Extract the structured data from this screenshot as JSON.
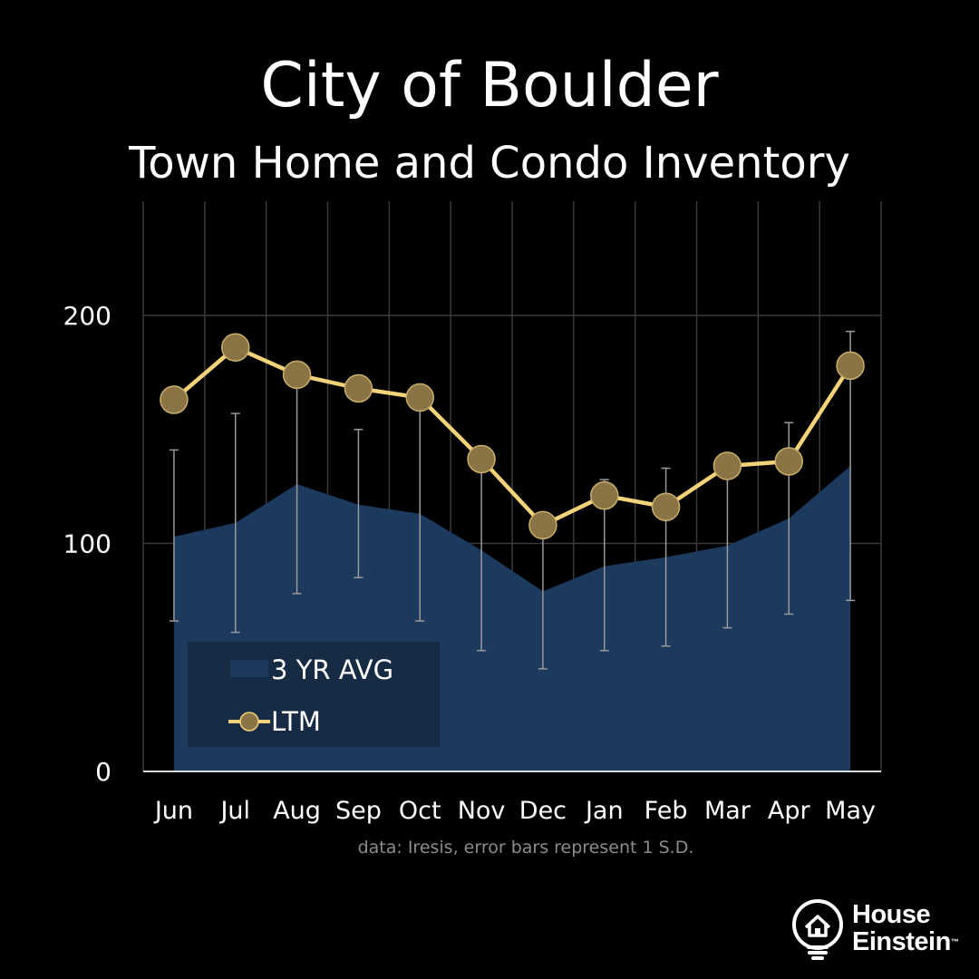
{
  "chart_data": {
    "type": "area",
    "title": "City of Boulder",
    "subtitle": "Town Home and Condo Inventory",
    "categories": [
      "Jun",
      "Jul",
      "Aug",
      "Sep",
      "Oct",
      "Nov",
      "Dec",
      "Jan",
      "Feb",
      "Mar",
      "Apr",
      "May"
    ],
    "yticks": [
      "0",
      "100",
      "200"
    ],
    "ylim": [
      0,
      250
    ],
    "grid": true,
    "legend_position": "bottom-left",
    "series": [
      {
        "name": "3 YR AVG",
        "kind": "area",
        "color": "#1b3a5e",
        "values": [
          103,
          109,
          126,
          117,
          113,
          97,
          79,
          90,
          94,
          99,
          111,
          134
        ],
        "error_low": [
          66,
          61,
          78,
          85,
          66,
          53,
          45,
          53,
          55,
          63,
          69,
          75
        ],
        "error_high": [
          141,
          157,
          174,
          150,
          162,
          141,
          107,
          128,
          133,
          136,
          153,
          193
        ]
      },
      {
        "name": "LTM",
        "kind": "line",
        "color": "#f3d37a",
        "marker_color": "#8a7445",
        "values": [
          163,
          186,
          174,
          168,
          164,
          137,
          108,
          121,
          116,
          134,
          136,
          178
        ]
      }
    ],
    "source_note": "data: Iresis,  error bars represent 1 S.D."
  },
  "logo": {
    "line1": "House",
    "line2": "Einstein",
    "tm": "™"
  }
}
